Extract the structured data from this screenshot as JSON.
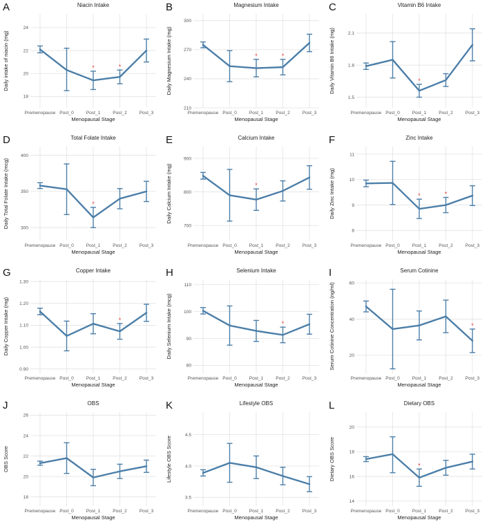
{
  "colors": {
    "line": "#4b7ea8",
    "star": "#e8413c",
    "grid": "#e2e2e2",
    "text": "#222222"
  },
  "chart_data": [
    {
      "letter": "A",
      "type": "line",
      "title": "Niacin Intake",
      "xlabel": "Menopausal Stage",
      "ylabel": "Daily intake of niacin (mg)",
      "categories": [
        "Premenopause",
        "Post_0",
        "Post_1",
        "Post_2",
        "Post_3"
      ],
      "values": [
        22.1,
        20.3,
        19.4,
        19.7,
        22.0
      ],
      "error_low": [
        21.8,
        18.5,
        18.6,
        19.1,
        21.0
      ],
      "error_high": [
        22.4,
        22.2,
        20.2,
        20.3,
        23.0
      ],
      "significant": [
        false,
        false,
        true,
        true,
        false
      ],
      "ylim": [
        17.0,
        25.2
      ],
      "yticks": [
        18,
        20,
        22,
        24
      ]
    },
    {
      "letter": "B",
      "type": "line",
      "title": "Magnesium Intake",
      "xlabel": "Menopausal Stage",
      "ylabel": "Daily Magnesium Intake (mg)",
      "categories": [
        "Premenopause",
        "Post_0",
        "Post_1",
        "Post_2",
        "Post_3"
      ],
      "values": [
        275,
        253,
        251,
        252,
        277
      ],
      "error_low": [
        272,
        237,
        242,
        244,
        268
      ],
      "error_high": [
        278,
        269,
        260,
        260,
        286
      ],
      "significant": [
        false,
        false,
        true,
        true,
        false
      ],
      "ylim": [
        210,
        307
      ],
      "yticks": [
        210,
        240,
        270,
        300
      ]
    },
    {
      "letter": "C",
      "type": "line",
      "title": "Vitamin B6 Intake",
      "xlabel": "Menopausal Stage",
      "ylabel": "Daily Vitamin B6 Intake (mg)",
      "categories": [
        "Premenopause",
        "Post_0",
        "Post_1",
        "Post_2",
        "Post_3"
      ],
      "values": [
        1.79,
        1.85,
        1.56,
        1.66,
        1.99
      ],
      "error_low": [
        1.76,
        1.68,
        1.5,
        1.6,
        1.84
      ],
      "error_high": [
        1.82,
        2.02,
        1.62,
        1.72,
        2.14
      ],
      "significant": [
        false,
        false,
        true,
        false,
        false
      ],
      "ylim": [
        1.4,
        2.28
      ],
      "yticks": [
        1.5,
        1.8,
        2.1
      ]
    },
    {
      "letter": "D",
      "type": "line",
      "title": "Total Folate Intake",
      "xlabel": "Menopausal Stage",
      "ylabel": "Daily Total Folate Intake (mcg)",
      "categories": [
        "Premenopause",
        "Post_0",
        "Post_1",
        "Post_2",
        "Post_3"
      ],
      "values": [
        358,
        353,
        314,
        340,
        350
      ],
      "error_low": [
        354,
        318,
        300,
        326,
        336
      ],
      "error_high": [
        362,
        388,
        328,
        354,
        364
      ],
      "significant": [
        false,
        false,
        true,
        false,
        false
      ],
      "ylim": [
        282,
        412
      ],
      "yticks": [
        300,
        350,
        400
      ]
    },
    {
      "letter": "E",
      "type": "line",
      "title": "Calcium Intake",
      "xlabel": "Menopausal Stage",
      "ylabel": "Daily Calcium Intake (mg)",
      "categories": [
        "Premenopause",
        "Post_0",
        "Post_1",
        "Post_2",
        "Post_3"
      ],
      "values": [
        848,
        790,
        777,
        803,
        843
      ],
      "error_low": [
        838,
        713,
        745,
        773,
        808
      ],
      "error_high": [
        858,
        867,
        809,
        833,
        878
      ],
      "significant": [
        false,
        false,
        true,
        false,
        false
      ],
      "ylim": [
        655,
        935
      ],
      "yticks": [
        700,
        800,
        900
      ]
    },
    {
      "letter": "F",
      "type": "line",
      "title": "Zinc Intake",
      "xlabel": "Menopausal Stage",
      "ylabel": "Daily Zinc Intake (mg)",
      "categories": [
        "Premenopause",
        "Post_0",
        "Post_1",
        "Post_2",
        "Post_3"
      ],
      "values": [
        9.85,
        9.87,
        8.85,
        9.0,
        9.37
      ],
      "error_low": [
        9.72,
        9.02,
        8.47,
        8.7,
        8.98
      ],
      "error_high": [
        9.98,
        10.72,
        9.23,
        9.3,
        9.76
      ],
      "significant": [
        false,
        false,
        true,
        true,
        false
      ],
      "ylim": [
        7.6,
        11.3
      ],
      "yticks": [
        8,
        9,
        10,
        11
      ]
    },
    {
      "letter": "G",
      "type": "line",
      "title": "Copper Intake",
      "xlabel": "Menopausal Stage",
      "ylabel": "Daily Copper Intake (mg)",
      "categories": [
        "Premenopause",
        "Post_0",
        "Post_1",
        "Post_2",
        "Post_3"
      ],
      "values": [
        1.163,
        1.051,
        1.107,
        1.072,
        1.157
      ],
      "error_low": [
        1.148,
        0.983,
        1.061,
        1.036,
        1.118
      ],
      "error_high": [
        1.178,
        1.119,
        1.153,
        1.108,
        1.196
      ],
      "significant": [
        false,
        false,
        false,
        true,
        false
      ],
      "ylim": [
        0.88,
        1.31
      ],
      "yticks": [
        0.9,
        1.0,
        1.1,
        1.2,
        1.3
      ]
    },
    {
      "letter": "H",
      "type": "line",
      "title": "Selenium Intake",
      "xlabel": "Menopausal Stage",
      "ylabel": "Daily Selenium Intake (mcg)",
      "categories": [
        "Premenopause",
        "Post_0",
        "Post_1",
        "Post_2",
        "Post_3"
      ],
      "values": [
        100.3,
        94.8,
        92.8,
        91.3,
        95.3
      ],
      "error_low": [
        99.1,
        87.5,
        88.9,
        88.4,
        91.6
      ],
      "error_high": [
        101.5,
        102.1,
        96.7,
        94.2,
        99.0
      ],
      "significant": [
        false,
        false,
        false,
        true,
        false
      ],
      "ylim": [
        77,
        112
      ],
      "yticks": [
        80,
        90,
        100,
        110
      ]
    },
    {
      "letter": "I",
      "type": "line",
      "title": "Serum Cotinine",
      "xlabel": "Menopausal Stage",
      "ylabel": "Serum Cotinine Concentration (ng/ml)",
      "categories": [
        "Premenopause",
        "Post_0",
        "Post_1",
        "Post_2",
        "Post_3"
      ],
      "values": [
        47.0,
        34.5,
        36.5,
        41.5,
        28.0
      ],
      "error_low": [
        44.0,
        12.5,
        28.5,
        32.5,
        21.5
      ],
      "error_high": [
        50.0,
        56.5,
        44.5,
        50.5,
        34.5
      ],
      "significant": [
        false,
        false,
        false,
        false,
        true
      ],
      "ylim": [
        10,
        62
      ],
      "yticks": [
        20,
        40,
        60
      ]
    },
    {
      "letter": "J",
      "type": "line",
      "title": "OBS",
      "xlabel": "Menopausal Stage",
      "ylabel": "OBS Score",
      "categories": [
        "Premenopause",
        "Post_0",
        "Post_1",
        "Post_2",
        "Post_3"
      ],
      "values": [
        21.3,
        21.8,
        19.9,
        20.5,
        21.0
      ],
      "error_low": [
        21.1,
        20.3,
        19.1,
        19.8,
        20.4
      ],
      "error_high": [
        21.5,
        23.3,
        20.7,
        21.2,
        21.6
      ],
      "significant": [
        false,
        false,
        false,
        false,
        false
      ],
      "ylim": [
        17.1,
        26.3
      ],
      "yticks": [
        18,
        20,
        22,
        24,
        26
      ]
    },
    {
      "letter": "K",
      "type": "line",
      "title": "Lifestyle OBS",
      "xlabel": "Menopausal Stage",
      "ylabel": "Lifestyle OBS Score",
      "categories": [
        "Premenopause",
        "Post_0",
        "Post_1",
        "Post_2",
        "Post_3"
      ],
      "values": [
        3.89,
        4.05,
        3.98,
        3.84,
        3.71
      ],
      "error_low": [
        3.84,
        3.74,
        3.8,
        3.7,
        3.59
      ],
      "error_high": [
        3.94,
        4.36,
        4.16,
        3.98,
        3.83
      ],
      "significant": [
        false,
        false,
        false,
        false,
        false
      ],
      "ylim": [
        3.36,
        4.86
      ],
      "yticks": [
        3.5,
        4.0,
        4.5
      ]
    },
    {
      "letter": "L",
      "type": "line",
      "title": "Dietary OBS",
      "xlabel": "Menopausal Stage",
      "ylabel": "Dietary OBS Score",
      "categories": [
        "Premenopause",
        "Post_0",
        "Post_1",
        "Post_2",
        "Post_3"
      ],
      "values": [
        17.4,
        17.8,
        15.9,
        16.7,
        17.2
      ],
      "error_low": [
        17.2,
        16.3,
        15.2,
        16.1,
        16.6
      ],
      "error_high": [
        17.6,
        19.2,
        16.6,
        17.3,
        17.8
      ],
      "significant": [
        false,
        false,
        true,
        false,
        false
      ],
      "ylim": [
        13.6,
        21.2
      ],
      "yticks": [
        14,
        16,
        18,
        20
      ]
    }
  ]
}
